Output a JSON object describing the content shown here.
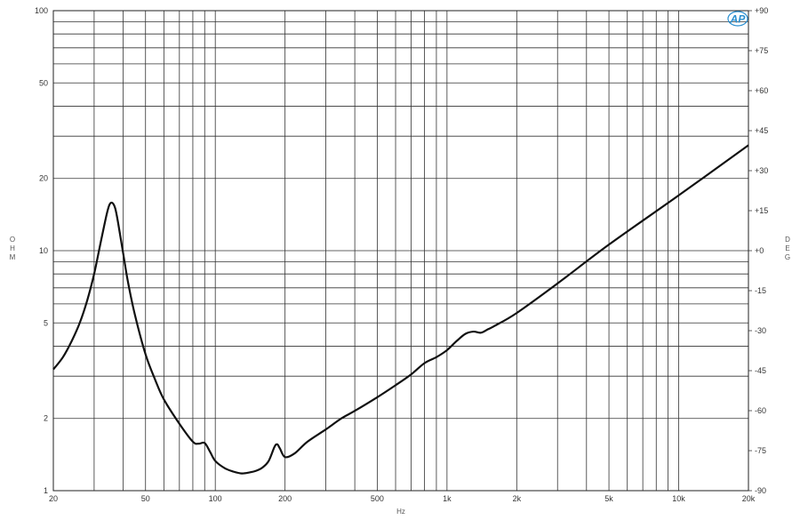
{
  "logo": "AP",
  "chart_data": {
    "type": "line",
    "title": "",
    "xlabel": "Hz",
    "ylabel": "OHM",
    "y2label": "DEG",
    "x_scale": "log",
    "y_scale": "log",
    "xlim": [
      20,
      20000
    ],
    "ylim": [
      1,
      100
    ],
    "y2lim": [
      -90,
      90
    ],
    "grid": true,
    "x_ticks": [
      {
        "v": 20,
        "label": "20"
      },
      {
        "v": 50,
        "label": "50"
      },
      {
        "v": 100,
        "label": "100"
      },
      {
        "v": 200,
        "label": "200"
      },
      {
        "v": 500,
        "label": "500"
      },
      {
        "v": 1000,
        "label": "1k"
      },
      {
        "v": 2000,
        "label": "2k"
      },
      {
        "v": 5000,
        "label": "5k"
      },
      {
        "v": 10000,
        "label": "10k"
      },
      {
        "v": 20000,
        "label": "20k"
      }
    ],
    "y_ticks": [
      {
        "v": 1,
        "label": "1"
      },
      {
        "v": 2,
        "label": "2"
      },
      {
        "v": 5,
        "label": "5"
      },
      {
        "v": 10,
        "label": "10"
      },
      {
        "v": 20,
        "label": "20"
      },
      {
        "v": 50,
        "label": "50"
      },
      {
        "v": 100,
        "label": "100"
      }
    ],
    "y2_ticks": [
      {
        "v": 90,
        "label": "+90"
      },
      {
        "v": 75,
        "label": "+75"
      },
      {
        "v": 60,
        "label": "+60"
      },
      {
        "v": 45,
        "label": "+45"
      },
      {
        "v": 30,
        "label": "+30"
      },
      {
        "v": 15,
        "label": "+15"
      },
      {
        "v": 0,
        "label": "+0"
      },
      {
        "v": -15,
        "label": "-15"
      },
      {
        "v": -30,
        "label": "-30"
      },
      {
        "v": -45,
        "label": "-45"
      },
      {
        "v": -60,
        "label": "-60"
      },
      {
        "v": -75,
        "label": "-75"
      },
      {
        "v": -90,
        "label": "-90"
      }
    ],
    "x_grid": [
      20,
      30,
      40,
      50,
      60,
      70,
      80,
      90,
      100,
      200,
      300,
      400,
      500,
      600,
      700,
      800,
      900,
      1000,
      2000,
      3000,
      4000,
      5000,
      6000,
      7000,
      8000,
      9000,
      10000,
      20000
    ],
    "y_grid": [
      1,
      2,
      3,
      4,
      5,
      6,
      7,
      8,
      9,
      10,
      20,
      30,
      40,
      50,
      60,
      70,
      80,
      90,
      100
    ],
    "series": [
      {
        "color": "#111111",
        "x": [
          20,
          22,
          24,
          26,
          28,
          30,
          32,
          34,
          35,
          36,
          37,
          38,
          40,
          42,
          45,
          50,
          55,
          60,
          70,
          80,
          85,
          90,
          95,
          100,
          110,
          120,
          130,
          140,
          150,
          160,
          170,
          180,
          185,
          190,
          200,
          220,
          250,
          300,
          350,
          400,
          500,
          600,
          700,
          800,
          900,
          1000,
          1100,
          1200,
          1300,
          1400,
          1500,
          1600,
          2000,
          3000,
          5000,
          10000,
          20000
        ],
        "y": [
          3.2,
          3.6,
          4.2,
          5.0,
          6.2,
          8.0,
          10.8,
          14.2,
          15.6,
          15.8,
          15.0,
          13.2,
          9.8,
          7.4,
          5.4,
          3.7,
          2.9,
          2.4,
          1.9,
          1.6,
          1.57,
          1.58,
          1.45,
          1.33,
          1.24,
          1.2,
          1.18,
          1.19,
          1.21,
          1.25,
          1.33,
          1.52,
          1.56,
          1.5,
          1.38,
          1.43,
          1.6,
          1.8,
          2.0,
          2.15,
          2.45,
          2.75,
          3.05,
          3.4,
          3.6,
          3.85,
          4.2,
          4.5,
          4.6,
          4.55,
          4.7,
          4.85,
          5.5,
          7.3,
          10.6,
          17.0,
          27.5
        ]
      }
    ]
  }
}
